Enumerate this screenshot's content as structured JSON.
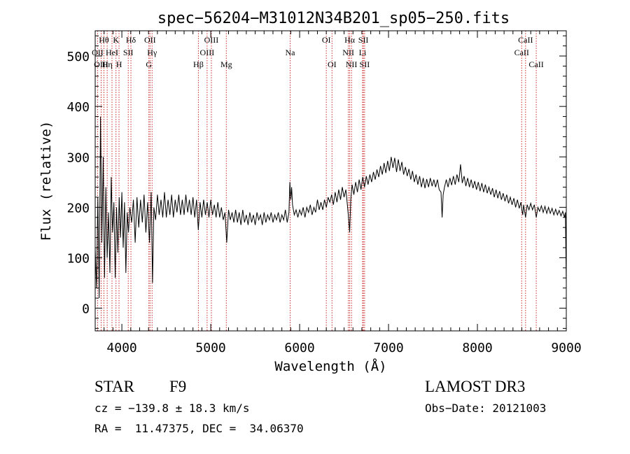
{
  "chart_data": {
    "type": "line",
    "title": "spec−56204−M31012N34B201_sp05−250.fits",
    "xlabel": "Wavelength (Å)",
    "ylabel": "Flux (relative)",
    "xlim": [
      3700,
      9000
    ],
    "ylim": [
      -45,
      550
    ],
    "xticks": [
      4000,
      5000,
      6000,
      7000,
      8000,
      9000
    ],
    "yticks": [
      0,
      100,
      200,
      300,
      400,
      500
    ],
    "line_color": "#000000",
    "marker_color": "#cc2a2a",
    "series": [
      {
        "name": "spectrum",
        "points": [
          [
            3700,
            120
          ],
          [
            3715,
            40
          ],
          [
            3730,
            220
          ],
          [
            3745,
            20
          ],
          [
            3760,
            380
          ],
          [
            3775,
            130
          ],
          [
            3790,
            300
          ],
          [
            3805,
            60
          ],
          [
            3820,
            240
          ],
          [
            3835,
            100
          ],
          [
            3850,
            190
          ],
          [
            3865,
            70
          ],
          [
            3880,
            260
          ],
          [
            3895,
            150
          ],
          [
            3910,
            210
          ],
          [
            3925,
            60
          ],
          [
            3940,
            200
          ],
          [
            3955,
            110
          ],
          [
            3970,
            220
          ],
          [
            3985,
            140
          ],
          [
            4000,
            230
          ],
          [
            4015,
            120
          ],
          [
            4030,
            210
          ],
          [
            4045,
            70
          ],
          [
            4060,
            190
          ],
          [
            4075,
            150
          ],
          [
            4090,
            200
          ],
          [
            4110,
            170
          ],
          [
            4130,
            215
          ],
          [
            4150,
            130
          ],
          [
            4170,
            220
          ],
          [
            4190,
            160
          ],
          [
            4210,
            215
          ],
          [
            4230,
            170
          ],
          [
            4250,
            225
          ],
          [
            4270,
            150
          ],
          [
            4290,
            210
          ],
          [
            4310,
            130
          ],
          [
            4330,
            230
          ],
          [
            4345,
            50
          ],
          [
            4360,
            200
          ],
          [
            4380,
            175
          ],
          [
            4400,
            225
          ],
          [
            4420,
            185
          ],
          [
            4440,
            215
          ],
          [
            4460,
            180
          ],
          [
            4480,
            230
          ],
          [
            4500,
            180
          ],
          [
            4520,
            215
          ],
          [
            4540,
            185
          ],
          [
            4560,
            225
          ],
          [
            4580,
            180
          ],
          [
            4600,
            215
          ],
          [
            4620,
            190
          ],
          [
            4640,
            225
          ],
          [
            4660,
            185
          ],
          [
            4680,
            215
          ],
          [
            4700,
            185
          ],
          [
            4720,
            225
          ],
          [
            4740,
            190
          ],
          [
            4760,
            215
          ],
          [
            4780,
            185
          ],
          [
            4800,
            220
          ],
          [
            4820,
            180
          ],
          [
            4840,
            215
          ],
          [
            4860,
            155
          ],
          [
            4880,
            210
          ],
          [
            4900,
            180
          ],
          [
            4920,
            215
          ],
          [
            4940,
            185
          ],
          [
            4960,
            210
          ],
          [
            4980,
            180
          ],
          [
            5000,
            215
          ],
          [
            5020,
            185
          ],
          [
            5040,
            205
          ],
          [
            5060,
            180
          ],
          [
            5080,
            210
          ],
          [
            5100,
            180
          ],
          [
            5120,
            200
          ],
          [
            5140,
            175
          ],
          [
            5160,
            190
          ],
          [
            5180,
            130
          ],
          [
            5200,
            195
          ],
          [
            5220,
            175
          ],
          [
            5240,
            190
          ],
          [
            5260,
            170
          ],
          [
            5280,
            195
          ],
          [
            5300,
            170
          ],
          [
            5320,
            190
          ],
          [
            5340,
            165
          ],
          [
            5360,
            195
          ],
          [
            5380,
            170
          ],
          [
            5400,
            185
          ],
          [
            5420,
            165
          ],
          [
            5440,
            190
          ],
          [
            5460,
            170
          ],
          [
            5480,
            185
          ],
          [
            5500,
            165
          ],
          [
            5520,
            190
          ],
          [
            5540,
            175
          ],
          [
            5560,
            185
          ],
          [
            5580,
            165
          ],
          [
            5600,
            190
          ],
          [
            5620,
            170
          ],
          [
            5640,
            185
          ],
          [
            5660,
            175
          ],
          [
            5680,
            190
          ],
          [
            5700,
            170
          ],
          [
            5720,
            185
          ],
          [
            5740,
            175
          ],
          [
            5760,
            190
          ],
          [
            5780,
            170
          ],
          [
            5800,
            185
          ],
          [
            5820,
            175
          ],
          [
            5840,
            195
          ],
          [
            5860,
            170
          ],
          [
            5880,
            190
          ],
          [
            5890,
            250
          ],
          [
            5900,
            215
          ],
          [
            5910,
            240
          ],
          [
            5920,
            205
          ],
          [
            5940,
            185
          ],
          [
            5960,
            195
          ],
          [
            5980,
            180
          ],
          [
            6000,
            195
          ],
          [
            6020,
            185
          ],
          [
            6040,
            200
          ],
          [
            6060,
            180
          ],
          [
            6080,
            200
          ],
          [
            6100,
            190
          ],
          [
            6120,
            205
          ],
          [
            6140,
            185
          ],
          [
            6160,
            200
          ],
          [
            6180,
            190
          ],
          [
            6200,
            215
          ],
          [
            6220,
            195
          ],
          [
            6240,
            210
          ],
          [
            6260,
            195
          ],
          [
            6280,
            215
          ],
          [
            6300,
            200
          ],
          [
            6320,
            220
          ],
          [
            6340,
            210
          ],
          [
            6360,
            225
          ],
          [
            6380,
            205
          ],
          [
            6400,
            230
          ],
          [
            6420,
            210
          ],
          [
            6440,
            235
          ],
          [
            6460,
            215
          ],
          [
            6480,
            240
          ],
          [
            6500,
            220
          ],
          [
            6520,
            235
          ],
          [
            6540,
            200
          ],
          [
            6555,
            170
          ],
          [
            6563,
            150
          ],
          [
            6575,
            215
          ],
          [
            6590,
            245
          ],
          [
            6610,
            225
          ],
          [
            6630,
            250
          ],
          [
            6650,
            230
          ],
          [
            6670,
            255
          ],
          [
            6690,
            235
          ],
          [
            6710,
            260
          ],
          [
            6730,
            240
          ],
          [
            6750,
            262
          ],
          [
            6770,
            245
          ],
          [
            6790,
            265
          ],
          [
            6810,
            250
          ],
          [
            6830,
            270
          ],
          [
            6850,
            255
          ],
          [
            6870,
            275
          ],
          [
            6890,
            260
          ],
          [
            6910,
            282
          ],
          [
            6930,
            265
          ],
          [
            6950,
            288
          ],
          [
            6970,
            268
          ],
          [
            6990,
            292
          ],
          [
            7010,
            272
          ],
          [
            7030,
            300
          ],
          [
            7050,
            278
          ],
          [
            7070,
            298
          ],
          [
            7090,
            270
          ],
          [
            7110,
            295
          ],
          [
            7130,
            272
          ],
          [
            7150,
            290
          ],
          [
            7170,
            265
          ],
          [
            7190,
            280
          ],
          [
            7210,
            262
          ],
          [
            7230,
            276
          ],
          [
            7250,
            255
          ],
          [
            7270,
            272
          ],
          [
            7290,
            250
          ],
          [
            7310,
            265
          ],
          [
            7330,
            245
          ],
          [
            7350,
            262
          ],
          [
            7370,
            240
          ],
          [
            7390,
            258
          ],
          [
            7410,
            238
          ],
          [
            7430,
            256
          ],
          [
            7450,
            240
          ],
          [
            7470,
            258
          ],
          [
            7490,
            242
          ],
          [
            7510,
            255
          ],
          [
            7530,
            240
          ],
          [
            7550,
            255
          ],
          [
            7570,
            235
          ],
          [
            7590,
            230
          ],
          [
            7603,
            180
          ],
          [
            7615,
            225
          ],
          [
            7630,
            240
          ],
          [
            7650,
            255
          ],
          [
            7670,
            240
          ],
          [
            7690,
            258
          ],
          [
            7710,
            244
          ],
          [
            7730,
            262
          ],
          [
            7750,
            245
          ],
          [
            7770,
            265
          ],
          [
            7790,
            250
          ],
          [
            7810,
            285
          ],
          [
            7830,
            248
          ],
          [
            7850,
            262
          ],
          [
            7870,
            242
          ],
          [
            7890,
            258
          ],
          [
            7910,
            240
          ],
          [
            7930,
            255
          ],
          [
            7950,
            238
          ],
          [
            7970,
            252
          ],
          [
            7990,
            235
          ],
          [
            8010,
            250
          ],
          [
            8030,
            232
          ],
          [
            8050,
            248
          ],
          [
            8070,
            230
          ],
          [
            8090,
            245
          ],
          [
            8110,
            228
          ],
          [
            8130,
            240
          ],
          [
            8150,
            225
          ],
          [
            8170,
            238
          ],
          [
            8190,
            220
          ],
          [
            8210,
            235
          ],
          [
            8230,
            218
          ],
          [
            8250,
            232
          ],
          [
            8270,
            215
          ],
          [
            8290,
            228
          ],
          [
            8310,
            212
          ],
          [
            8330,
            225
          ],
          [
            8350,
            208
          ],
          [
            8370,
            220
          ],
          [
            8390,
            205
          ],
          [
            8410,
            218
          ],
          [
            8430,
            200
          ],
          [
            8450,
            215
          ],
          [
            8470,
            198
          ],
          [
            8490,
            210
          ],
          [
            8500,
            195
          ],
          [
            8510,
            185
          ],
          [
            8520,
            205
          ],
          [
            8542,
            180
          ],
          [
            8560,
            205
          ],
          [
            8580,
            195
          ],
          [
            8600,
            208
          ],
          [
            8620,
            195
          ],
          [
            8640,
            205
          ],
          [
            8662,
            180
          ],
          [
            8680,
            200
          ],
          [
            8700,
            192
          ],
          [
            8720,
            203
          ],
          [
            8740,
            190
          ],
          [
            8760,
            202
          ],
          [
            8780,
            188
          ],
          [
            8800,
            200
          ],
          [
            8820,
            188
          ],
          [
            8840,
            198
          ],
          [
            8860,
            185
          ],
          [
            8880,
            196
          ],
          [
            8900,
            185
          ],
          [
            8920,
            194
          ],
          [
            8940,
            183
          ],
          [
            8960,
            192
          ],
          [
            8980,
            180
          ],
          [
            8990,
            190
          ],
          [
            9000,
            50
          ]
        ]
      }
    ],
    "line_markers": [
      {
        "label": "Hθ",
        "x": 3798,
        "row": 1
      },
      {
        "label": "K",
        "x": 3934,
        "row": 1
      },
      {
        "label": "Hδ",
        "x": 4102,
        "row": 1
      },
      {
        "label": "OII",
        "x": 4317,
        "row": 1
      },
      {
        "label": "OIII",
        "x": 5007,
        "row": 1
      },
      {
        "label": "OI",
        "x": 6300,
        "row": 1
      },
      {
        "label": "Hα",
        "x": 6563,
        "row": 1
      },
      {
        "label": "SII",
        "x": 6717,
        "row": 1
      },
      {
        "label": "CaII",
        "x": 8542,
        "row": 1
      },
      {
        "label": "OII",
        "x": 3727,
        "row": 2
      },
      {
        "label": "HeI",
        "x": 3889,
        "row": 2
      },
      {
        "label": "SII",
        "x": 4072,
        "row": 2
      },
      {
        "label": "Hγ",
        "x": 4340,
        "row": 2
      },
      {
        "label": "OIII",
        "x": 4959,
        "row": 2
      },
      {
        "label": "Na",
        "x": 5893,
        "row": 2
      },
      {
        "label": "NII",
        "x": 6548,
        "row": 2
      },
      {
        "label": "Li",
        "x": 6708,
        "row": 2
      },
      {
        "label": "CaII",
        "x": 8498,
        "row": 2
      },
      {
        "label": "OIII",
        "x": 3767,
        "row": 3
      },
      {
        "label": "Hη",
        "x": 3835,
        "row": 3
      },
      {
        "label": "H",
        "x": 3968,
        "row": 3
      },
      {
        "label": "G",
        "x": 4304,
        "row": 3
      },
      {
        "label": "Hβ",
        "x": 4861,
        "row": 3
      },
      {
        "label": "Mg",
        "x": 5175,
        "row": 3
      },
      {
        "label": "OI",
        "x": 6364,
        "row": 3
      },
      {
        "label": "NII",
        "x": 6583,
        "row": 3
      },
      {
        "label": "SII",
        "x": 6731,
        "row": 3
      },
      {
        "label": "CaII",
        "x": 8662,
        "row": 3
      }
    ]
  },
  "info": {
    "class_label": "STAR",
    "subclass": "F9",
    "survey": "LAMOST DR3",
    "redshift": "cz = −139.8 ± 18.3 km/s",
    "obs_date": "Obs−Date: 20121003",
    "coords": "RA =  11.47375, DEC =  34.06370"
  }
}
